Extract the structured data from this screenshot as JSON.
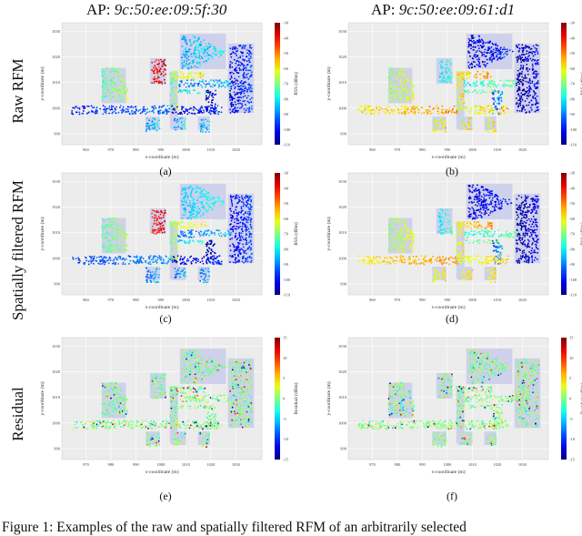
{
  "columns": [
    {
      "prefix": "AP: ",
      "mac": "9c:50:ee:09:5f:30"
    },
    {
      "prefix": "AP: ",
      "mac": "9c:50:ee:09:61:d1"
    }
  ],
  "rows": [
    "Raw RFM",
    "Spatially filtered RFM",
    "Residual"
  ],
  "captions": [
    "(a)",
    "(b)",
    "(c)",
    "(d)",
    "(e)",
    "(f)"
  ],
  "figure_caption": "Figure 1: Examples of the raw and spatially filtered RFM of an arbitrarily selected",
  "chart_data": [
    {
      "panel": "a",
      "type": "scatter",
      "xlabel": "x-coordinate (m)",
      "ylabel": "y-coordinate (m)",
      "colorbar_label": "RSS (dBm)",
      "clim": [
        -110,
        -30
      ],
      "cticks": [
        "-30",
        "-40",
        "-50",
        "-60",
        "-70",
        "-80",
        "-90",
        "-100",
        "-110"
      ],
      "xticks": [
        "960",
        "970",
        "980",
        "990",
        "1000",
        "1010",
        "1020"
      ],
      "yticks": [
        "1030",
        "1020",
        "1010",
        "1000",
        "990"
      ],
      "region_values": [
        -95,
        -70,
        -40,
        -70,
        -62,
        -88,
        -80,
        -105,
        -100,
        -82,
        -98,
        -85
      ]
    },
    {
      "panel": "b",
      "type": "scatter",
      "xlabel": "x-coordinate (m)",
      "ylabel": "y-coordinate (m)",
      "colorbar_label": "RSS (dBm)",
      "clim": [
        -110,
        -30
      ],
      "cticks": [
        "-30",
        "-40",
        "-50",
        "-60",
        "-70",
        "-80",
        "-90",
        "-100",
        "-110"
      ],
      "xticks": [
        "960",
        "970",
        "980",
        "990",
        "1000",
        "1010",
        "1020"
      ],
      "yticks": [
        "1030",
        "1020",
        "1010",
        "1000",
        "990"
      ],
      "region_values": [
        -55,
        -65,
        -78,
        -60,
        -55,
        -75,
        -72,
        -90,
        -60,
        -100,
        -105,
        -60
      ]
    },
    {
      "panel": "c",
      "type": "scatter",
      "xlabel": "x-coordinate (m)",
      "ylabel": "y-coordinate (m)",
      "colorbar_label": "RSS (dBm)",
      "clim": [
        -110,
        -30
      ],
      "cticks": [
        "-30",
        "-40",
        "-50",
        "-60",
        "-70",
        "-80",
        "-90",
        "-100",
        "-110"
      ],
      "xticks": [
        "960",
        "970",
        "980",
        "990",
        "1000",
        "1010",
        "1020"
      ],
      "yticks": [
        "1030",
        "1020",
        "1010",
        "1000",
        "990"
      ],
      "region_values": [
        -92,
        -70,
        -40,
        -68,
        -62,
        -88,
        -80,
        -105,
        -100,
        -80,
        -98,
        -88
      ]
    },
    {
      "panel": "d",
      "type": "scatter",
      "xlabel": "x-coordinate (m)",
      "ylabel": "y-coordinate (m)",
      "colorbar_label": "RSS (dBm)",
      "clim": [
        -110,
        -30
      ],
      "cticks": [
        "-30",
        "-40",
        "-50",
        "-60",
        "-70",
        "-80",
        "-90",
        "-100",
        "-110"
      ],
      "xticks": [
        "960",
        "970",
        "980",
        "990",
        "1000",
        "1010",
        "1020"
      ],
      "yticks": [
        "1030",
        "1020",
        "1010",
        "1000",
        "990"
      ],
      "region_values": [
        -55,
        -65,
        -78,
        -60,
        -55,
        -75,
        -72,
        -90,
        -60,
        -100,
        -105,
        -60
      ]
    },
    {
      "panel": "e",
      "type": "scatter",
      "xlabel": "x-coordinate (m)",
      "ylabel": "y-coordinate (m)",
      "colorbar_label": "Residual (dBm)",
      "clim": [
        -15,
        15
      ],
      "cticks": [
        "15",
        "10",
        "5",
        "0",
        "-5",
        "-10",
        "-15"
      ],
      "xticks": [
        "970",
        "980",
        "990",
        "1000",
        "1010",
        "1020",
        "1030"
      ],
      "yticks": [
        "1030",
        "1020",
        "1010",
        "1000",
        "990"
      ],
      "region_values": [
        0,
        0,
        0,
        0,
        0,
        0,
        0,
        0,
        0,
        0,
        0,
        0
      ]
    },
    {
      "panel": "f",
      "type": "scatter",
      "xlabel": "x-coordinate (m)",
      "ylabel": "y-coordinate (m)",
      "colorbar_label": "Residual (dBm)",
      "clim": [
        -15,
        15
      ],
      "cticks": [
        "15",
        "10",
        "5",
        "0",
        "-5",
        "-10",
        "-15"
      ],
      "xticks": [
        "970",
        "980",
        "990",
        "1000",
        "1010",
        "1020",
        "1030"
      ],
      "yticks": [
        "1030",
        "1020",
        "1010",
        "1000",
        "990"
      ],
      "region_values": [
        0,
        0,
        0,
        0,
        0,
        0,
        0,
        0,
        0,
        0,
        0,
        0
      ]
    }
  ]
}
